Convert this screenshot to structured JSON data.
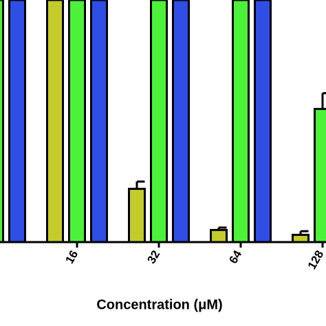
{
  "chart_data": {
    "type": "bar",
    "x_label": "Concentration (μM)",
    "categories": [
      null,
      "16",
      "32",
      "64",
      "128"
    ],
    "series": [
      {
        "color": "#c3cc2b",
        "values": [
          null,
          100,
          22,
          5,
          3
        ],
        "errors": [
          null,
          null,
          3,
          1,
          1.5
        ]
      },
      {
        "color": "#4cf23a",
        "values": [
          100,
          100,
          100,
          100,
          55
        ],
        "errors": [
          null,
          null,
          null,
          null,
          6.5
        ]
      },
      {
        "color": "#2f4ee6",
        "values": [
          100,
          100,
          100,
          100,
          null
        ],
        "errors": [
          null,
          null,
          null,
          null,
          null
        ]
      }
    ],
    "ylim": [
      0,
      100
    ]
  }
}
